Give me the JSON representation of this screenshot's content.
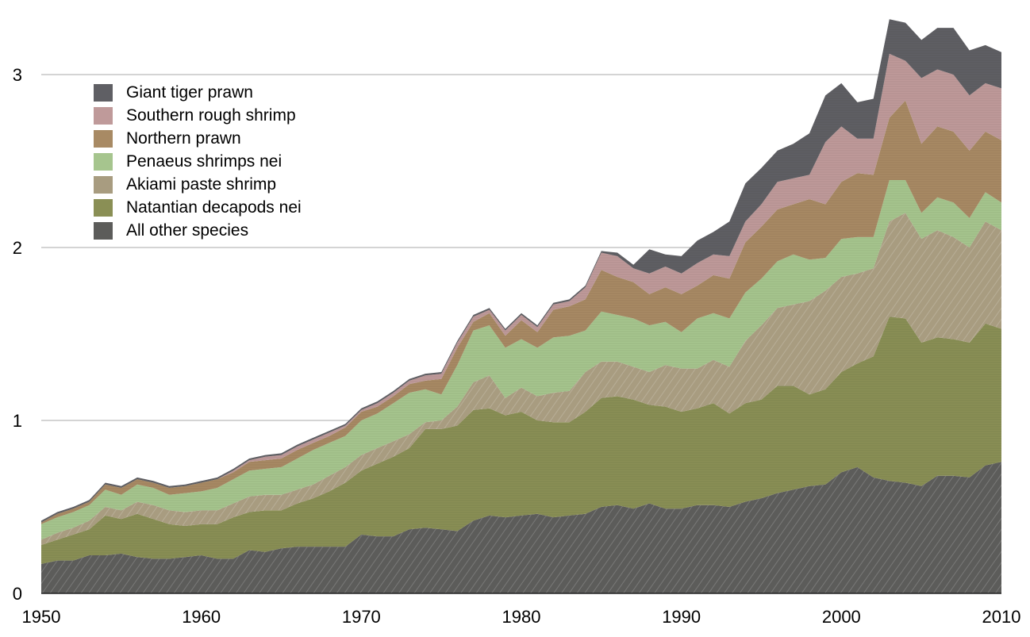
{
  "chart_data": {
    "type": "area",
    "stacked": true,
    "title": "",
    "xlabel": "",
    "ylabel": "",
    "xlim": [
      1950,
      2010
    ],
    "ylim": [
      0,
      3.35
    ],
    "grid": true,
    "legend_position": "top-left",
    "x_ticks": [
      "1950",
      "1960",
      "1970",
      "1980",
      "1990",
      "2000",
      "2010"
    ],
    "y_ticks": [
      "0",
      "1",
      "2",
      "3"
    ],
    "x": [
      1950,
      1951,
      1952,
      1953,
      1954,
      1955,
      1956,
      1957,
      1958,
      1959,
      1960,
      1961,
      1962,
      1963,
      1964,
      1965,
      1966,
      1967,
      1968,
      1969,
      1970,
      1971,
      1972,
      1973,
      1974,
      1975,
      1976,
      1977,
      1978,
      1979,
      1980,
      1981,
      1982,
      1983,
      1984,
      1985,
      1986,
      1987,
      1988,
      1989,
      1990,
      1991,
      1992,
      1993,
      1994,
      1995,
      1996,
      1997,
      1998,
      1999,
      2000,
      2001,
      2002,
      2003,
      2004,
      2005,
      2006,
      2007,
      2008,
      2009,
      2010
    ],
    "series": [
      {
        "name": "All other species",
        "color": "#5c5c5a",
        "values": [
          0.17,
          0.19,
          0.19,
          0.22,
          0.22,
          0.23,
          0.21,
          0.2,
          0.2,
          0.21,
          0.22,
          0.2,
          0.2,
          0.25,
          0.24,
          0.26,
          0.27,
          0.27,
          0.27,
          0.27,
          0.34,
          0.33,
          0.33,
          0.37,
          0.38,
          0.37,
          0.36,
          0.42,
          0.45,
          0.44,
          0.45,
          0.46,
          0.44,
          0.45,
          0.46,
          0.5,
          0.51,
          0.49,
          0.52,
          0.49,
          0.49,
          0.51,
          0.51,
          0.5,
          0.53,
          0.55,
          0.58,
          0.6,
          0.62,
          0.63,
          0.7,
          0.73,
          0.67,
          0.65,
          0.64,
          0.62,
          0.68,
          0.68,
          0.67,
          0.74,
          0.76
        ]
      },
      {
        "name": "Natantian decapods nei",
        "color": "#8a8f55",
        "values": [
          0.11,
          0.12,
          0.15,
          0.15,
          0.23,
          0.2,
          0.25,
          0.23,
          0.2,
          0.18,
          0.18,
          0.2,
          0.24,
          0.22,
          0.24,
          0.22,
          0.25,
          0.28,
          0.32,
          0.37,
          0.37,
          0.42,
          0.46,
          0.47,
          0.57,
          0.58,
          0.61,
          0.64,
          0.62,
          0.59,
          0.6,
          0.54,
          0.55,
          0.54,
          0.59,
          0.63,
          0.63,
          0.63,
          0.57,
          0.59,
          0.56,
          0.56,
          0.59,
          0.54,
          0.57,
          0.57,
          0.62,
          0.6,
          0.53,
          0.55,
          0.58,
          0.6,
          0.7,
          0.95,
          0.95,
          0.83,
          0.8,
          0.79,
          0.78,
          0.82,
          0.77
        ]
      },
      {
        "name": "Akiami paste shrimp",
        "color": "#a89c80",
        "values": [
          0.03,
          0.04,
          0.04,
          0.05,
          0.05,
          0.05,
          0.07,
          0.08,
          0.08,
          0.08,
          0.08,
          0.08,
          0.08,
          0.09,
          0.09,
          0.09,
          0.08,
          0.08,
          0.09,
          0.09,
          0.09,
          0.09,
          0.09,
          0.08,
          0.04,
          0.05,
          0.11,
          0.16,
          0.19,
          0.1,
          0.14,
          0.14,
          0.17,
          0.18,
          0.23,
          0.21,
          0.2,
          0.19,
          0.19,
          0.24,
          0.25,
          0.23,
          0.25,
          0.27,
          0.36,
          0.43,
          0.45,
          0.47,
          0.54,
          0.57,
          0.55,
          0.52,
          0.51,
          0.55,
          0.61,
          0.6,
          0.62,
          0.59,
          0.55,
          0.59,
          0.57
        ]
      },
      {
        "name": "Penaeus shrimps nei",
        "color": "#a6c58e",
        "values": [
          0.09,
          0.09,
          0.09,
          0.09,
          0.1,
          0.09,
          0.1,
          0.1,
          0.09,
          0.11,
          0.11,
          0.13,
          0.14,
          0.15,
          0.15,
          0.16,
          0.18,
          0.2,
          0.19,
          0.18,
          0.2,
          0.2,
          0.22,
          0.24,
          0.19,
          0.15,
          0.24,
          0.3,
          0.29,
          0.29,
          0.28,
          0.28,
          0.32,
          0.32,
          0.24,
          0.29,
          0.27,
          0.28,
          0.27,
          0.25,
          0.21,
          0.29,
          0.27,
          0.28,
          0.28,
          0.27,
          0.27,
          0.29,
          0.24,
          0.19,
          0.22,
          0.21,
          0.18,
          0.24,
          0.19,
          0.15,
          0.19,
          0.2,
          0.17,
          0.17,
          0.16
        ]
      },
      {
        "name": "Northern prawn",
        "color": "#a88a64",
        "values": [
          0.01,
          0.02,
          0.02,
          0.02,
          0.03,
          0.04,
          0.03,
          0.03,
          0.04,
          0.04,
          0.05,
          0.05,
          0.04,
          0.05,
          0.05,
          0.05,
          0.05,
          0.04,
          0.04,
          0.05,
          0.05,
          0.04,
          0.04,
          0.05,
          0.05,
          0.09,
          0.1,
          0.05,
          0.07,
          0.07,
          0.11,
          0.09,
          0.16,
          0.17,
          0.18,
          0.24,
          0.22,
          0.21,
          0.18,
          0.2,
          0.22,
          0.19,
          0.22,
          0.23,
          0.29,
          0.3,
          0.3,
          0.29,
          0.35,
          0.31,
          0.33,
          0.37,
          0.36,
          0.36,
          0.46,
          0.4,
          0.41,
          0.41,
          0.39,
          0.35,
          0.36
        ]
      },
      {
        "name": "Southern rough shrimp",
        "color": "#bf9a9a",
        "values": [
          0.0,
          0.0,
          0.0,
          0.0,
          0.0,
          0.0,
          0.0,
          0.0,
          0.0,
          0.0,
          0.0,
          0.0,
          0.01,
          0.01,
          0.02,
          0.02,
          0.02,
          0.02,
          0.02,
          0.01,
          0.01,
          0.02,
          0.02,
          0.02,
          0.03,
          0.03,
          0.03,
          0.03,
          0.02,
          0.03,
          0.03,
          0.03,
          0.03,
          0.03,
          0.07,
          0.1,
          0.12,
          0.08,
          0.12,
          0.12,
          0.12,
          0.13,
          0.12,
          0.13,
          0.12,
          0.13,
          0.16,
          0.15,
          0.14,
          0.36,
          0.32,
          0.2,
          0.21,
          0.37,
          0.23,
          0.38,
          0.33,
          0.33,
          0.32,
          0.28,
          0.3
        ]
      },
      {
        "name": "Giant tiger prawn",
        "color": "#5f5f64",
        "values": [
          0.01,
          0.01,
          0.01,
          0.01,
          0.01,
          0.01,
          0.01,
          0.01,
          0.01,
          0.01,
          0.01,
          0.01,
          0.01,
          0.01,
          0.01,
          0.01,
          0.01,
          0.01,
          0.01,
          0.01,
          0.01,
          0.01,
          0.01,
          0.01,
          0.01,
          0.01,
          0.01,
          0.01,
          0.01,
          0.01,
          0.01,
          0.01,
          0.01,
          0.01,
          0.01,
          0.01,
          0.02,
          0.02,
          0.14,
          0.07,
          0.1,
          0.13,
          0.13,
          0.2,
          0.22,
          0.21,
          0.18,
          0.2,
          0.24,
          0.27,
          0.25,
          0.21,
          0.23,
          0.2,
          0.22,
          0.22,
          0.24,
          0.27,
          0.26,
          0.22,
          0.21
        ]
      }
    ]
  },
  "legend": {
    "items": [
      {
        "label": "Giant tiger prawn",
        "color": "#5f5f64"
      },
      {
        "label": "Southern rough shrimp",
        "color": "#bf9a9a"
      },
      {
        "label": "Northern prawn",
        "color": "#a88a64"
      },
      {
        "label": "Penaeus shrimps nei",
        "color": "#a6c58e"
      },
      {
        "label": "Akiami paste shrimp",
        "color": "#a89c80"
      },
      {
        "label": "Natantian decapods nei",
        "color": "#8a8f55"
      },
      {
        "label": "All other species",
        "color": "#5c5c5a"
      }
    ]
  }
}
